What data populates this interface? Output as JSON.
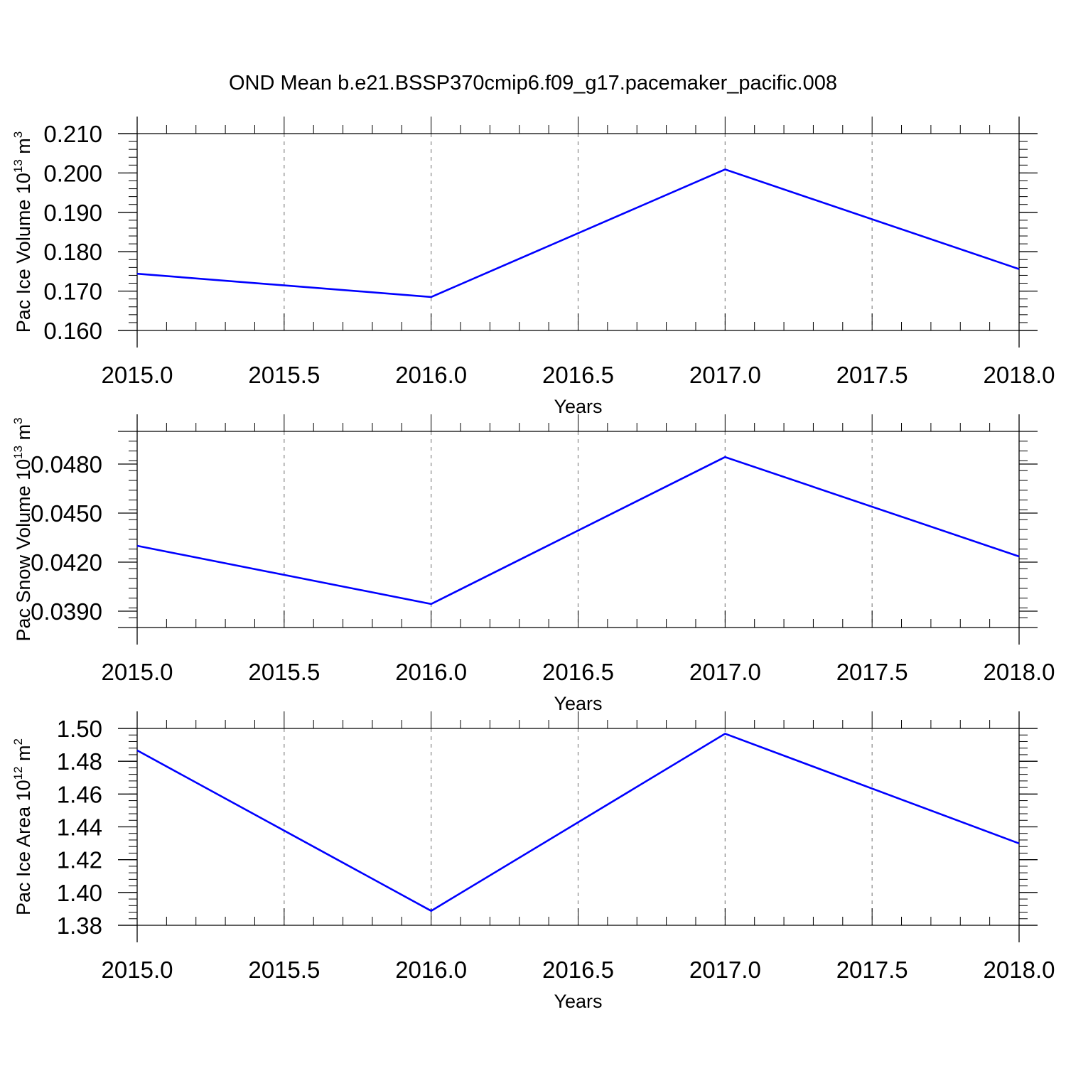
{
  "title": "OND Mean b.e21.BSSP370cmip6.f09_g17.pacemaker_pacific.008",
  "chart_data": [
    {
      "type": "line",
      "xlabel": "Years",
      "ylabel": {
        "text": "Pac Ice Volume 10",
        "exp": "13",
        "unit": " m",
        "unit_exp": "3"
      },
      "xlim": [
        2015.0,
        2018.0
      ],
      "ylim": [
        0.16,
        0.21
      ],
      "x_ticks": [
        "2015.0",
        "2015.5",
        "2016.0",
        "2016.5",
        "2017.0",
        "2017.5",
        "2018.0"
      ],
      "y_ticks": [
        {
          "value": 0.16,
          "label": "0.160"
        },
        {
          "value": 0.17,
          "label": "0.170"
        },
        {
          "value": 0.18,
          "label": "0.180"
        },
        {
          "value": 0.19,
          "label": "0.190"
        },
        {
          "value": 0.2,
          "label": "0.200"
        },
        {
          "value": 0.21,
          "label": "0.210"
        }
      ],
      "y_minor_step": 0.002,
      "x": [
        2015.0,
        2016.0,
        2017.0,
        2018.0
      ],
      "series": [
        {
          "values": [
            0.1744,
            0.1685,
            0.2009,
            0.1756
          ],
          "color": "#0000ff"
        }
      ],
      "grid": "vertical dashed at major x ticks"
    },
    {
      "type": "line",
      "xlabel": "Years",
      "ylabel": {
        "text": "Pac Snow Volume 10",
        "exp": "13",
        "unit": " m",
        "unit_exp": "3"
      },
      "xlim": [
        2015.0,
        2018.0
      ],
      "ylim": [
        0.038,
        0.05
      ],
      "x_ticks": [
        "2015.0",
        "2015.5",
        "2016.0",
        "2016.5",
        "2017.0",
        "2017.5",
        "2018.0"
      ],
      "y_ticks": [
        {
          "value": 0.039,
          "label": "0.0390"
        },
        {
          "value": 0.042,
          "label": "0.0420"
        },
        {
          "value": 0.045,
          "label": "0.0450"
        },
        {
          "value": 0.048,
          "label": "0.0480"
        }
      ],
      "y_minor_step": 0.0006,
      "x": [
        2015.0,
        2016.0,
        2017.0,
        2018.0
      ],
      "series": [
        {
          "values": [
            0.043,
            0.03944,
            0.04843,
            0.04235
          ],
          "color": "#0000ff"
        }
      ],
      "grid": "vertical dashed at major x ticks"
    },
    {
      "type": "line",
      "xlabel": "Years",
      "ylabel": {
        "text": "Pac Ice Area 10",
        "exp": "12",
        "unit": " m",
        "unit_exp": "2"
      },
      "xlim": [
        2015.0,
        2018.0
      ],
      "ylim": [
        1.38,
        1.5
      ],
      "x_ticks": [
        "2015.0",
        "2015.5",
        "2016.0",
        "2016.5",
        "2017.0",
        "2017.5",
        "2018.0"
      ],
      "y_ticks": [
        {
          "value": 1.38,
          "label": "1.38"
        },
        {
          "value": 1.4,
          "label": "1.40"
        },
        {
          "value": 1.42,
          "label": "1.42"
        },
        {
          "value": 1.44,
          "label": "1.44"
        },
        {
          "value": 1.46,
          "label": "1.46"
        },
        {
          "value": 1.48,
          "label": "1.48"
        },
        {
          "value": 1.5,
          "label": "1.50"
        }
      ],
      "y_minor_step": 0.004,
      "x": [
        2015.0,
        2016.0,
        2017.0,
        2018.0
      ],
      "series": [
        {
          "values": [
            1.4866,
            1.3888,
            1.4968,
            1.4299
          ],
          "color": "#0000ff"
        }
      ],
      "grid": "vertical dashed at major x ticks"
    }
  ]
}
